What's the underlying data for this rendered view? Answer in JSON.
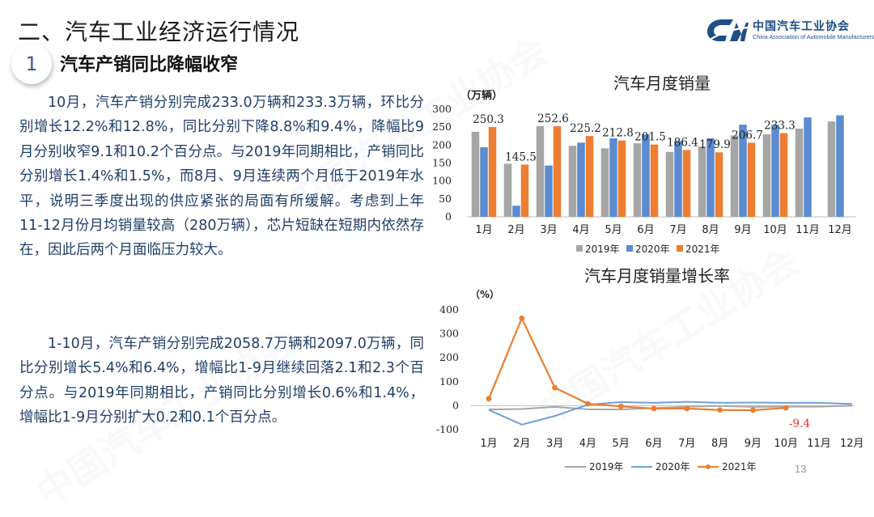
{
  "header": {
    "section_title": "二、汽车工业经济运行情况",
    "subsection_number": "1",
    "subsection_title": "汽车产销同比降幅收窄"
  },
  "logo": {
    "name_cn": "中国汽车工业协会",
    "name_en": "China Association of Automobile Manufacturers",
    "mark": "CAAM",
    "color": "#1f4e86"
  },
  "body": {
    "paragraph_1": "10月，汽车产销分别完成233.0万辆和233.3万辆，环比分别增长12.2%和12.8%，同比分别下降8.8%和9.4%，降幅比9月分别收窄9.1和10.2个百分点。与2019年同期相比，产销同比分别增长1.4%和1.5%，而8月、9月连续两个月低于2019年水平，说明三季度出现的供应紧张的局面有所缓解。考虑到上年11-12月份月均销量较高（280万辆），芯片短缺在短期内依然存在，因此后两个月面临压力较大。",
    "paragraph_2": "1-10月，汽车产销分别完成2058.7万辆和2097.0万辆，同比分别增长5.4%和6.4%，增幅比1-9月继续回落2.1和2.3个百分点。与2019年同期相比，产销同比分别增长0.6%和1.4%，增幅比1-9月分别扩大0.2和0.1个百分点。"
  },
  "page_number": "13",
  "chart_data": [
    {
      "type": "bar",
      "title": "汽车月度销量",
      "ylabel": "（万辆）",
      "ylim": [
        0,
        300
      ],
      "yticks": [
        0,
        50,
        100,
        150,
        200,
        250,
        300
      ],
      "grid": false,
      "legend": "bottom",
      "categories": [
        "1月",
        "2月",
        "3月",
        "4月",
        "5月",
        "6月",
        "7月",
        "8月",
        "9月",
        "10月",
        "11月",
        "12月"
      ],
      "series": [
        {
          "name": "2019年",
          "color": "#a6a6a6",
          "values": [
            237,
            148,
            253,
            198,
            191,
            205,
            181,
            196,
            227,
            230,
            246,
            266
          ]
        },
        {
          "name": "2020年",
          "color": "#5b8bd0",
          "values": [
            194,
            31,
            143,
            207,
            219,
            230,
            211,
            219,
            257,
            257,
            277,
            283
          ]
        },
        {
          "name": "2021年",
          "color": "#ed7d31",
          "values": [
            250.3,
            145.5,
            252.6,
            225.2,
            212.8,
            201.5,
            186.4,
            179.9,
            206.7,
            233.3,
            null,
            null
          ]
        }
      ],
      "data_labels": {
        "series": "2021年",
        "labels": [
          "250.3",
          "145.5",
          "252.6",
          "225.2",
          "212.8",
          "201.5",
          "186.4",
          "179.9",
          "206.7",
          "233.3"
        ]
      }
    },
    {
      "type": "line",
      "title": "汽车月度销量增长率",
      "ylabel": "（%）",
      "ylim": [
        -100,
        400
      ],
      "yticks": [
        -100,
        0,
        100,
        200,
        300,
        400
      ],
      "grid": false,
      "legend": "bottom",
      "categories": [
        "1月",
        "2月",
        "3月",
        "4月",
        "5月",
        "6月",
        "7月",
        "8月",
        "9月",
        "10月",
        "11月",
        "12月"
      ],
      "series": [
        {
          "name": "2019年",
          "color": "#a6a6a6",
          "values": [
            -16,
            -14,
            -5,
            -15,
            -16,
            -10,
            -4,
            -1,
            -5,
            -4,
            -4,
            0
          ]
        },
        {
          "name": "2020年",
          "color": "#6fa0d8",
          "values": [
            -18,
            -79,
            -43,
            4,
            15,
            12,
            16,
            12,
            13,
            12,
            12,
            7
          ]
        },
        {
          "name": "2021年",
          "color": "#ed7d31",
          "values": [
            29,
            365,
            75,
            8,
            -3,
            -12,
            -12,
            -18,
            -19,
            -9.4,
            null,
            null
          ]
        }
      ],
      "annotation": {
        "text": "-9.4",
        "color": "#e03030"
      }
    }
  ]
}
